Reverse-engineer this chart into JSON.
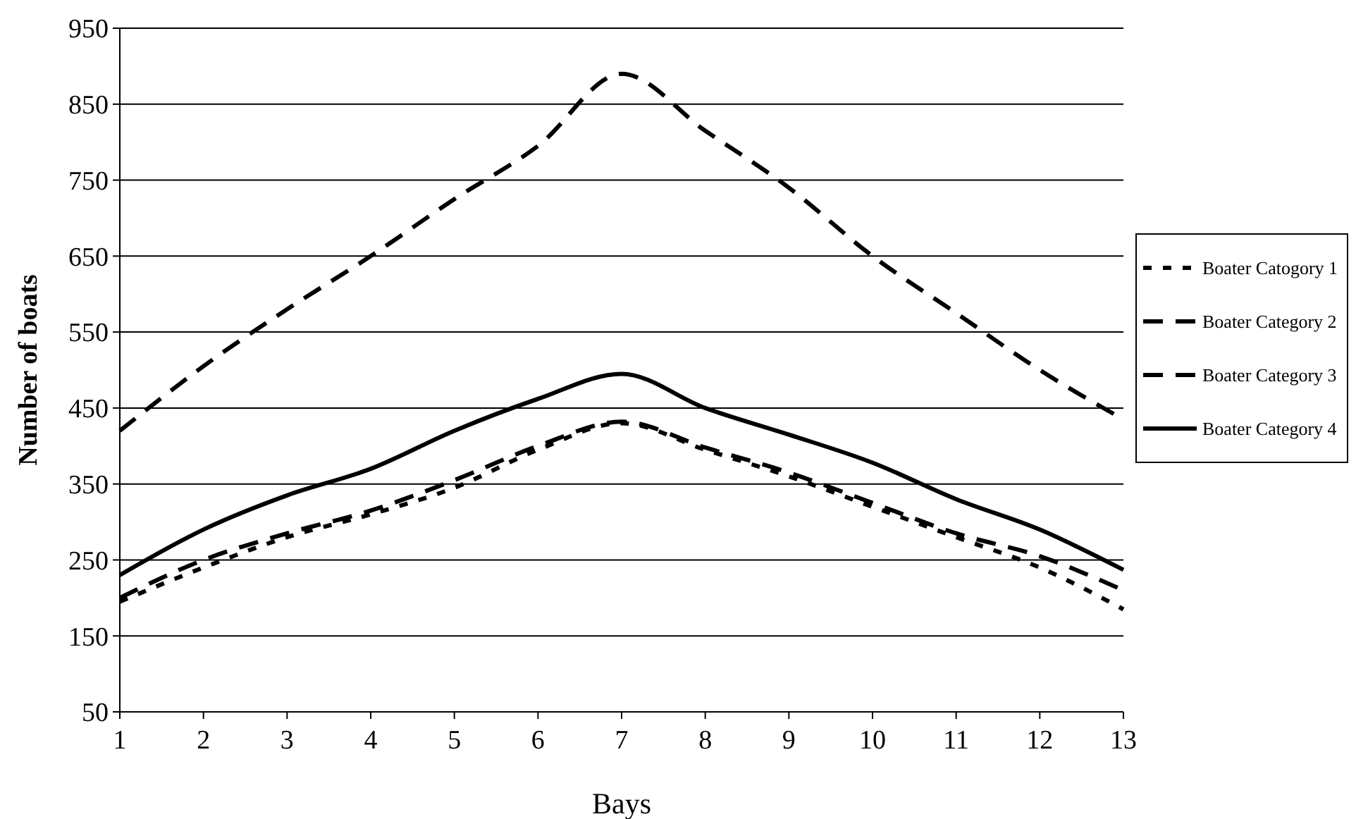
{
  "chart_data": {
    "type": "line",
    "xlabel": "Bays",
    "ylabel": "Number of boats",
    "x": [
      1,
      2,
      3,
      4,
      5,
      6,
      7,
      8,
      9,
      10,
      11,
      12,
      13
    ],
    "series": [
      {
        "name": "Boater Catogory 1",
        "color": "#000000",
        "line_style": "dotted",
        "values": [
          195,
          240,
          280,
          310,
          345,
          395,
          430,
          395,
          360,
          320,
          280,
          240,
          185
        ]
      },
      {
        "name": "Boater Category 2",
        "color": "#000000",
        "line_style": "dashed",
        "values": [
          200,
          250,
          285,
          315,
          355,
          400,
          432,
          398,
          365,
          325,
          285,
          255,
          210
        ]
      },
      {
        "name": "Boater Category 3",
        "color": "#000000",
        "line_style": "dashed",
        "values": [
          420,
          505,
          580,
          650,
          725,
          795,
          890,
          815,
          740,
          650,
          575,
          500,
          435
        ]
      },
      {
        "name": "Boater Category 4",
        "color": "#000000",
        "line_style": "solid",
        "values": [
          230,
          290,
          335,
          370,
          420,
          462,
          495,
          450,
          415,
          378,
          330,
          290,
          237
        ]
      }
    ],
    "xlim": [
      1,
      13
    ],
    "xticks": [
      1,
      2,
      3,
      4,
      5,
      6,
      7,
      8,
      9,
      10,
      11,
      12,
      13
    ],
    "ylim": [
      50,
      950
    ],
    "yticks": [
      50,
      150,
      250,
      350,
      450,
      550,
      650,
      750,
      850,
      950
    ],
    "grid": "y",
    "legend": "right"
  }
}
